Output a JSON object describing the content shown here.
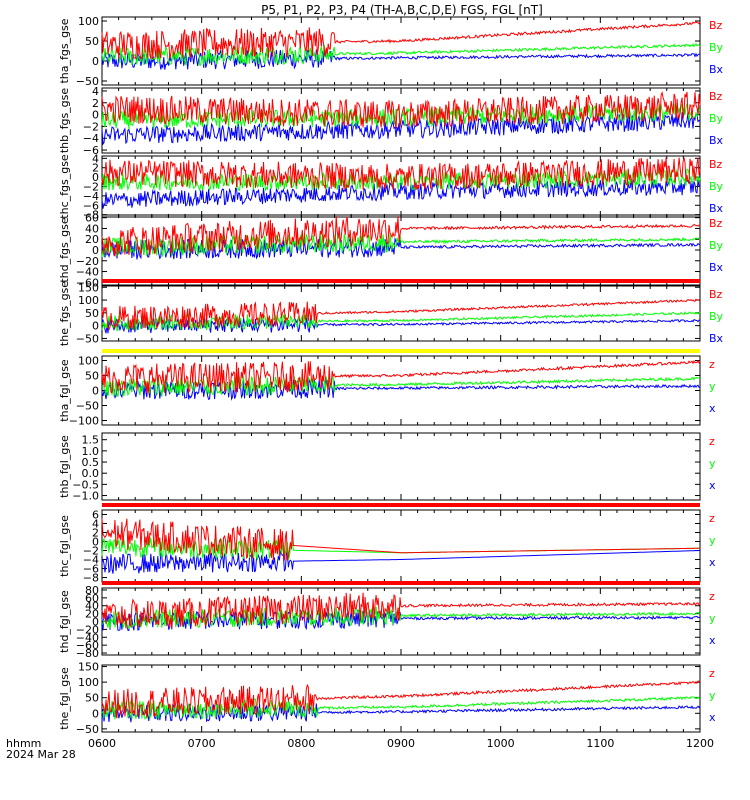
{
  "title": "P5, P1, P2, P3, P4 (TH-A,B,C,D,E) FGS, FGL [nT]",
  "time_axis": {
    "label": "hhmm",
    "date": "2024 Mar 28",
    "ticks": [
      "0600",
      "0700",
      "0800",
      "0900",
      "1000",
      "1100",
      "1200"
    ],
    "range": [
      "06:00",
      "12:00"
    ]
  },
  "colors": {
    "x": "#0000ff",
    "y": "#00ff00",
    "z": "#ff0000",
    "red_bar": "#ff0000",
    "yellow_bar": "#ffff00"
  },
  "chart_data": [
    {
      "type": "line",
      "ylabel": "tha_fgs_gse",
      "yticks": [
        "100",
        "50",
        "0",
        "−50"
      ],
      "ylim": [
        -60,
        110
      ],
      "legend": [
        "Bz",
        "By",
        "Bx"
      ],
      "series_levels": {
        "x": [
          0,
          8,
          15
        ],
        "y": [
          10,
          20,
          40
        ],
        "z": [
          40,
          50,
          95
        ]
      },
      "noise_until": "08:20"
    },
    {
      "type": "line",
      "ylabel": "thb_fgs_gse",
      "yticks": [
        "4",
        "2",
        "0",
        "−2",
        "−4",
        "−6"
      ],
      "ylim": [
        -6.5,
        4.5
      ],
      "legend": [
        "Bz",
        "By",
        "Bx"
      ],
      "series_levels": {
        "x": [
          -3.5,
          -2.5,
          -1
        ],
        "y": [
          -1,
          -0.5,
          0.5
        ],
        "z": [
          1,
          0,
          1.5
        ]
      },
      "noise_until": "12:00"
    },
    {
      "type": "line",
      "ylabel": "thc_fgs_gse",
      "yticks": [
        "4",
        "2",
        "0",
        "−2",
        "−4",
        "−6",
        "−8"
      ],
      "ylim": [
        -8.5,
        4.5
      ],
      "legend": [
        "Bz",
        "By",
        "Bx"
      ],
      "series_levels": {
        "x": [
          -5,
          -3,
          -2
        ],
        "y": [
          -1,
          -1,
          0
        ],
        "z": [
          1,
          0,
          1.5
        ]
      },
      "noise_until": "12:00"
    },
    {
      "type": "line",
      "ylabel": "thd_fgs_gse",
      "yticks": [
        "60",
        "40",
        "20",
        "0",
        "−20",
        "−40",
        "−60"
      ],
      "ylim": [
        -65,
        65
      ],
      "legend": [
        "Bz",
        "By",
        "Bx"
      ],
      "series_levels": {
        "x": [
          0,
          5,
          10
        ],
        "y": [
          5,
          15,
          20
        ],
        "z": [
          15,
          40,
          45
        ]
      },
      "noise_until": "09:00"
    },
    {
      "type": "line",
      "ylabel": "the_fgs_gse",
      "yticks": [
        "150",
        "100",
        "50",
        "0",
        "−50"
      ],
      "ylim": [
        -60,
        155
      ],
      "legend": [
        "Bz",
        "By",
        "Bx"
      ],
      "series_levels": {
        "x": [
          0,
          5,
          20
        ],
        "y": [
          10,
          20,
          50
        ],
        "z": [
          30,
          55,
          100
        ]
      },
      "noise_until": "08:10",
      "top_bar": {
        "color": "red",
        "from": "06:00",
        "to": "12:00"
      }
    },
    {
      "type": "line",
      "ylabel": "tha_fgl_gse",
      "yticks": [
        "100",
        "50",
        "0",
        "−50",
        "−100"
      ],
      "ylim": [
        -115,
        115
      ],
      "legend": [
        "z",
        "y",
        "x"
      ],
      "series_levels": {
        "x": [
          0,
          8,
          15
        ],
        "y": [
          10,
          20,
          40
        ],
        "z": [
          40,
          50,
          95
        ]
      },
      "noise_until": "08:20",
      "top_bar": {
        "color": "yellow",
        "from": "06:00",
        "to": "12:00"
      }
    },
    {
      "type": "line",
      "ylabel": "thb_fgl_gse",
      "yticks": [
        "1.5",
        "1.0",
        "0.5",
        "0.0",
        "−0.5",
        "−1.0"
      ],
      "ylim": [
        -1.2,
        1.8
      ],
      "legend": [
        "z",
        "y",
        "x"
      ],
      "series_levels": null,
      "bottom_bar": [
        {
          "color": "red",
          "from": "06:00",
          "to": "07:55"
        },
        {
          "color": "yellow",
          "from": "07:55",
          "to": "12:00"
        }
      ]
    },
    {
      "type": "line",
      "ylabel": "thc_fgl_gse",
      "yticks": [
        "6",
        "4",
        "2",
        "0",
        "−2",
        "−4",
        "−6",
        "−8"
      ],
      "ylim": [
        -9,
        7
      ],
      "legend": [
        "z",
        "y",
        "x"
      ],
      "series_levels": {
        "x": [
          -5,
          -4,
          -2
        ],
        "y": [
          -1,
          -2.5,
          -1.5
        ],
        "z": [
          2,
          -2.5,
          -1.5
        ]
      },
      "noise_until": "07:55",
      "data_until_noise": "07:55",
      "top_bar": {
        "color": "red",
        "from": "06:00",
        "to": "12:00"
      }
    },
    {
      "type": "line",
      "ylabel": "thd_fgl_gse",
      "yticks": [
        "80",
        "60",
        "40",
        "20",
        "0",
        "−20",
        "−40",
        "−60",
        "−80"
      ],
      "ylim": [
        -85,
        85
      ],
      "legend": [
        "z",
        "y",
        "x"
      ],
      "series_levels": {
        "x": [
          0,
          8,
          10
        ],
        "y": [
          5,
          15,
          20
        ],
        "z": [
          15,
          40,
          45
        ]
      },
      "noise_until": "09:00",
      "top_bar": {
        "color": "red",
        "from": "06:00",
        "to": "12:00"
      }
    },
    {
      "type": "line",
      "ylabel": "the_fgl_gse",
      "yticks": [
        "150",
        "100",
        "50",
        "0",
        "−50"
      ],
      "ylim": [
        -60,
        155
      ],
      "legend": [
        "z",
        "y",
        "x"
      ],
      "series_levels": {
        "x": [
          0,
          5,
          20
        ],
        "y": [
          10,
          20,
          50
        ],
        "z": [
          30,
          55,
          100
        ]
      },
      "noise_until": "08:10"
    }
  ]
}
